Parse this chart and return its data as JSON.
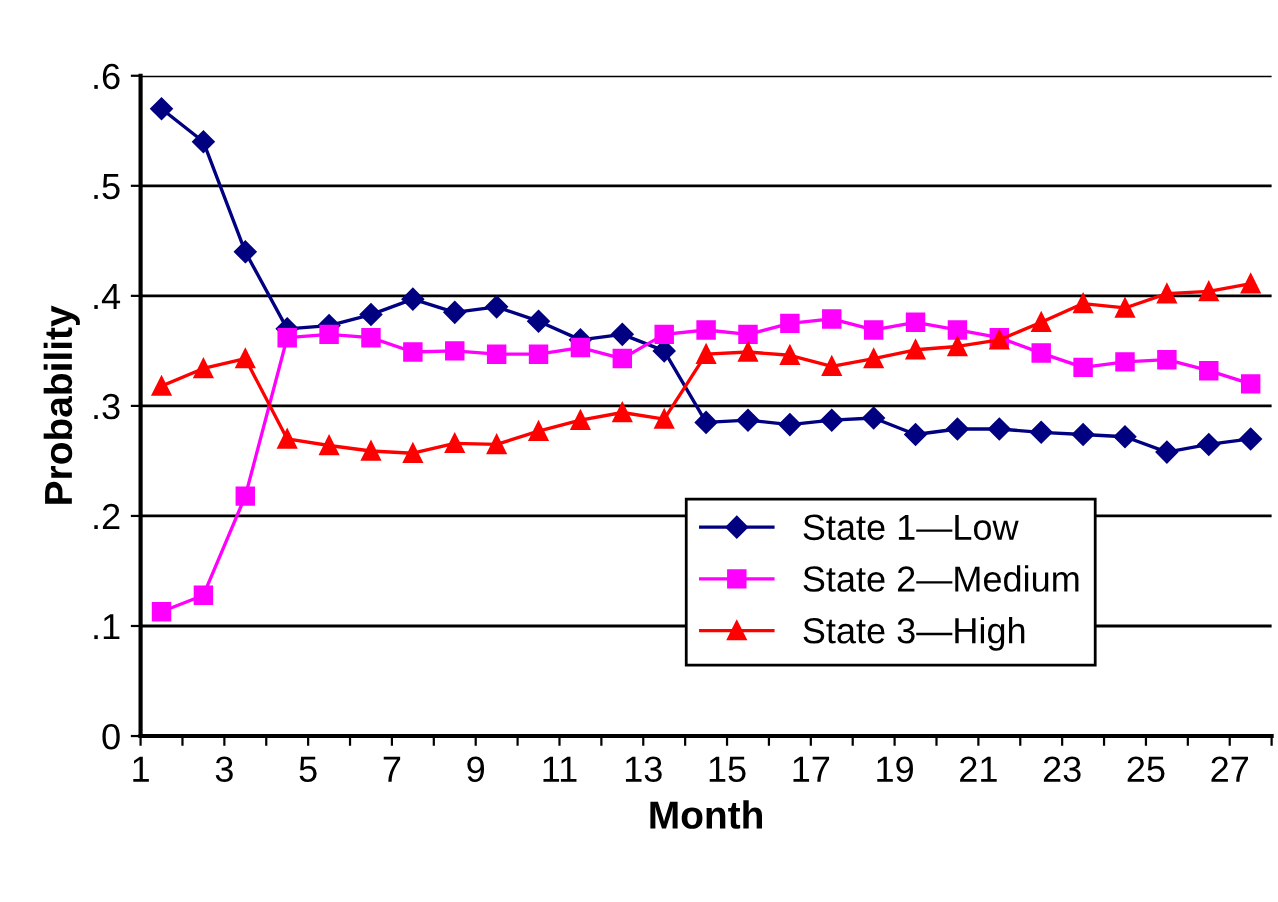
{
  "chart_data": {
    "type": "line",
    "xlabel": "Month",
    "ylabel": "Probability",
    "x": [
      1.5,
      2.5,
      3.5,
      4.5,
      5.5,
      6.5,
      7.5,
      8.5,
      9.5,
      10.5,
      11.5,
      12.5,
      13.5,
      14.5,
      15.5,
      16.5,
      17.5,
      18.5,
      19.5,
      20.5,
      21.5,
      22.5,
      23.5,
      24.5,
      25.5,
      26.5,
      27.5
    ],
    "series": [
      {
        "name": "State 1—Low",
        "color": "#000080",
        "marker": "diamond",
        "values": [
          0.57,
          0.54,
          0.44,
          0.37,
          0.373,
          0.383,
          0.397,
          0.385,
          0.39,
          0.377,
          0.36,
          0.365,
          0.35,
          0.285,
          0.287,
          0.283,
          0.287,
          0.289,
          0.274,
          0.279,
          0.279,
          0.276,
          0.274,
          0.272,
          0.258,
          0.265,
          0.27
        ]
      },
      {
        "name": "State 2—Medium",
        "color": "#ff00ff",
        "marker": "square",
        "values": [
          0.113,
          0.128,
          0.218,
          0.362,
          0.365,
          0.362,
          0.349,
          0.35,
          0.347,
          0.347,
          0.353,
          0.343,
          0.365,
          0.369,
          0.365,
          0.375,
          0.379,
          0.369,
          0.376,
          0.369,
          0.362,
          0.348,
          0.335,
          0.34,
          0.342,
          0.332,
          0.32
        ]
      },
      {
        "name": "State 3—High",
        "color": "#ff0000",
        "marker": "triangle",
        "values": [
          0.318,
          0.334,
          0.343,
          0.27,
          0.264,
          0.259,
          0.257,
          0.266,
          0.265,
          0.277,
          0.287,
          0.294,
          0.288,
          0.347,
          0.349,
          0.346,
          0.336,
          0.343,
          0.351,
          0.354,
          0.36,
          0.376,
          0.393,
          0.389,
          0.402,
          0.404,
          0.411
        ]
      }
    ],
    "xlim": [
      1,
      28
    ],
    "xticks": [
      1,
      {
        "value": 2,
        "label": null
      },
      3,
      {
        "value": 4,
        "label": null
      },
      5,
      {
        "value": 6,
        "label": null
      },
      7,
      {
        "value": 8,
        "label": null
      },
      9,
      {
        "value": 10,
        "label": null
      },
      11,
      {
        "value": 12,
        "label": null
      },
      13,
      {
        "value": 14,
        "label": null
      },
      15,
      {
        "value": 16,
        "label": null
      },
      17,
      {
        "value": 18,
        "label": null
      },
      19,
      {
        "value": 20,
        "label": null
      },
      21,
      {
        "value": 22,
        "label": null
      },
      23,
      {
        "value": 24,
        "label": null
      },
      25,
      {
        "value": 26,
        "label": null
      },
      27,
      {
        "value": 28,
        "label": null
      }
    ],
    "ylim": [
      0,
      0.6
    ],
    "yticks": [
      {
        "value": 0,
        "label": "0"
      },
      {
        "value": 0.1,
        "label": ".1"
      },
      {
        "value": 0.2,
        "label": ".2"
      },
      {
        "value": 0.3,
        "label": ".3"
      },
      {
        "value": 0.4,
        "label": ".4"
      },
      {
        "value": 0.5,
        "label": ".5"
      },
      {
        "value": 0.6,
        "label": ".6"
      }
    ],
    "grid": "y",
    "legend": "bottom right",
    "line_style": "solid"
  }
}
